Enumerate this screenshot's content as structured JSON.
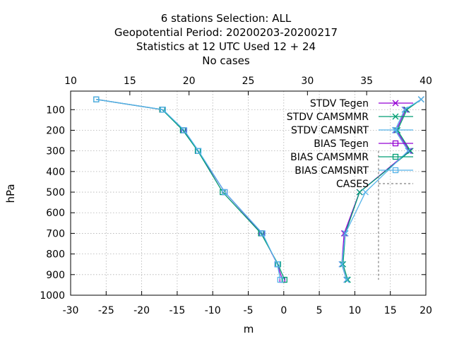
{
  "title_lines": [
    "6 stations Selection: ALL",
    "Geopotential  Period: 20200203-20200217",
    "Statistics at 12 UTC  Used  12 + 24",
    "No cases"
  ],
  "chart_data": {
    "type": "line",
    "title": "6 stations Selection: ALL",
    "xlabel": "m",
    "ylabel": "hPa",
    "x_bottom": {
      "range": [
        -30,
        20
      ],
      "ticks": [
        -30,
        -25,
        -20,
        -15,
        -10,
        -5,
        0,
        5,
        10,
        15,
        20
      ]
    },
    "x_top": {
      "range": [
        10,
        40
      ],
      "ticks": [
        10,
        15,
        20,
        25,
        30,
        35,
        40
      ]
    },
    "y": {
      "range": [
        1000,
        10
      ],
      "ticks": [
        100,
        200,
        300,
        400,
        500,
        600,
        700,
        800,
        900,
        1000
      ],
      "inverted": true
    },
    "grid": true,
    "legend_position": "top-right",
    "levels": [
      50,
      100,
      200,
      300,
      500,
      700,
      850,
      925
    ],
    "series": [
      {
        "name": "STDV Tegen",
        "axis": "top",
        "marker": "x",
        "color": "#9400d3",
        "values": [
          39.6,
          38.3,
          37.5,
          38.6,
          34.4,
          33.1,
          32.9,
          33.3
        ]
      },
      {
        "name": "STDV CAMSMMR",
        "axis": "top",
        "marker": "x",
        "color": "#009e73",
        "values": [
          39.6,
          38.4,
          37.6,
          38.7,
          34.4,
          33.2,
          33.0,
          33.4
        ]
      },
      {
        "name": "STDV CAMSNRT",
        "axis": "top",
        "marker": "x",
        "color": "#56b4e9",
        "values": [
          39.6,
          38.2,
          37.4,
          38.5,
          34.9,
          33.2,
          32.9,
          33.3
        ]
      },
      {
        "name": "BIAS Tegen",
        "axis": "bottom",
        "marker": "square",
        "color": "#9400d3",
        "values": [
          -26.4,
          -17.1,
          -14.1,
          -12.1,
          -8.3,
          -3.1,
          -0.9,
          -0.2
        ]
      },
      {
        "name": "BIAS CAMSMMR",
        "axis": "bottom",
        "marker": "square",
        "color": "#009e73",
        "values": [
          -26.4,
          -17.1,
          -14.2,
          -12.1,
          -8.6,
          -3.2,
          -0.8,
          0.1
        ]
      },
      {
        "name": "BIAS CAMSNRT",
        "axis": "bottom",
        "marker": "square",
        "color": "#56b4e9",
        "values": [
          -26.4,
          -17.0,
          -14.0,
          -12.0,
          -8.3,
          -3.0,
          -0.9,
          -0.5
        ]
      },
      {
        "name": "CASES",
        "axis": "top",
        "marker": "none",
        "color": "#808080",
        "dashed": true,
        "values": [
          36.0,
          36.0,
          36.0,
          36.0,
          36.0,
          36.0,
          36.0,
          36.0
        ]
      }
    ]
  }
}
